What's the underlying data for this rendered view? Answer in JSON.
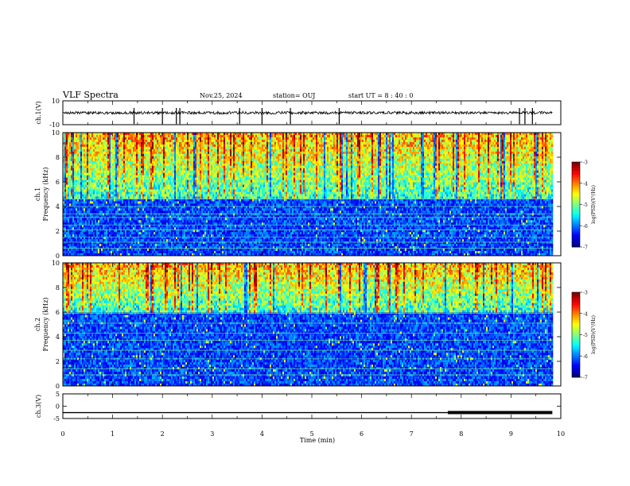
{
  "chart_data": {
    "type": "heatmap",
    "title": "VLF Spectra",
    "date": "Nov.25, 2024",
    "station": "station= OUJ",
    "start_ut": "start  UT =   8  : 40 : 0",
    "xlabel": "Time (min)",
    "xlim": [
      0,
      10
    ],
    "x_ticks": [
      "0",
      "1",
      "2",
      "3",
      "4",
      "5",
      "6",
      "7",
      "8",
      "9",
      "10"
    ],
    "panels": [
      {
        "id": "ch1-waveform",
        "type": "line",
        "ylabel": "ch.1(V)",
        "ylim": [
          -10,
          10
        ],
        "y_ticks": [
          "10",
          "-10"
        ],
        "baseline": 0,
        "noise_amplitude": 1.2,
        "spikes": [
          1.43,
          2.0,
          2.28,
          2.35,
          3.55,
          4.0,
          4.57,
          5.55,
          9.17,
          9.28,
          9.43
        ]
      },
      {
        "id": "ch1-spectrogram",
        "type": "heatmap",
        "ylabel_1": "ch.1",
        "ylabel_2": "Frequency (kHz)",
        "ylim": [
          0,
          10
        ],
        "y_ticks": [
          "0",
          "2",
          "4",
          "6",
          "8",
          "10"
        ],
        "data_xlim": [
          0,
          9.83
        ],
        "background_cutoff_khz": 4.7,
        "emission_top_khz": 10,
        "colorbar": {
          "label": "log(PSD)(V²/Hz)",
          "range": [
            -7,
            -3
          ],
          "ticks": [
            "-3",
            "-4",
            "-5",
            "-6",
            "-7"
          ]
        }
      },
      {
        "id": "ch2-spectrogram",
        "type": "heatmap",
        "ylabel_1": "ch.2",
        "ylabel_2": "Frequency (kHz)",
        "ylim": [
          0,
          10
        ],
        "y_ticks": [
          "0",
          "2",
          "4",
          "6",
          "8",
          "10"
        ],
        "data_xlim": [
          0,
          9.83
        ],
        "background_cutoff_khz": 6.0,
        "emission_top_khz": 10,
        "colorbar": {
          "label": "log(PSD)(V²/Hz)",
          "range": [
            -7,
            -3
          ],
          "ticks": [
            "-3",
            "-4",
            "-5",
            "-6",
            "-7"
          ]
        }
      },
      {
        "id": "ch3-waveform",
        "type": "line",
        "ylabel": "ch.3(V)",
        "ylim": [
          -5,
          5
        ],
        "y_ticks": [
          "5",
          "0",
          "-5"
        ],
        "series": [
          {
            "name": "ch.3",
            "x": [
              0,
              7.73,
              7.73,
              9.83
            ],
            "y": [
              -2.6,
              -2.6,
              -2.6,
              -2.6
            ]
          }
        ],
        "thick_from_min": 7.73
      }
    ]
  }
}
